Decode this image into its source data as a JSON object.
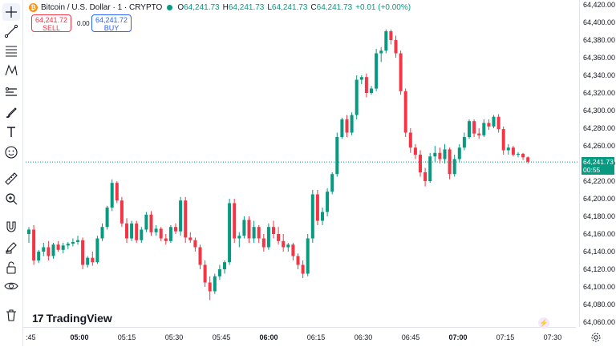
{
  "header": {
    "coin_glyph": "₿",
    "symbol": "Bitcoin / U.S. Dollar · 1 · CRYPTO",
    "ohlc": [
      {
        "k": "O",
        "v": "64,241.73"
      },
      {
        "k": "H",
        "v": "64,241.73"
      },
      {
        "k": "L",
        "v": "64,241.73"
      },
      {
        "k": "C",
        "v": "64,241.73"
      },
      {
        "k": "",
        "v": "+0.01 (+0.00%)"
      }
    ]
  },
  "trade": {
    "sell_price": "64,241.72",
    "sell_label": "SELL",
    "spread": "0.00",
    "buy_price": "64,241.72",
    "buy_label": "BUY"
  },
  "price_tag": {
    "price": "64,241.73",
    "countdown": "00:55"
  },
  "logo": {
    "mark": "17",
    "text": "TradingView"
  },
  "tools": [
    "crosshair-icon",
    "trend-line-icon",
    "fib-icon",
    "pattern-icon",
    "measure-lines-icon",
    "brush-icon",
    "text-icon",
    "emoji-icon",
    "ruler-icon",
    "zoom-icon",
    "magnet-icon",
    "lock-pencil-icon",
    "lock-icon",
    "eye-icon",
    "trash-icon"
  ],
  "colors": {
    "up": "#089981",
    "down": "#f23645",
    "accent": "#2962ff"
  },
  "chart_data": {
    "type": "candlestick",
    "interval": "1 minute",
    "ylim": [
      64050,
      64420
    ],
    "y_ticks": [
      64060,
      64080,
      64100,
      64120,
      64140,
      64160,
      64180,
      64200,
      64220,
      64240,
      64260,
      64280,
      64300,
      64320,
      64340,
      64360,
      64380,
      64400,
      64420
    ],
    "y_tick_labels": [
      "64,060.00",
      "64,080.00",
      "64,100.00",
      "64,120.00",
      "64,140.00",
      "64,160.00",
      "64,180.00",
      "64,200.00",
      "64,220.00",
      "64,240.00",
      "64,260.00",
      "64,280.00",
      "64,300.00",
      "64,320.00",
      "64,340.00",
      "64,360.00",
      "64,380.00",
      "64,400.00",
      "64,420.00"
    ],
    "x_ticks": [
      {
        "label": ":45",
        "bold": false,
        "minute": 0
      },
      {
        "label": "05:00",
        "bold": true,
        "minute": 15
      },
      {
        "label": "05:15",
        "bold": false,
        "minute": 30
      },
      {
        "label": "05:30",
        "bold": false,
        "minute": 45
      },
      {
        "label": "05:45",
        "bold": false,
        "minute": 60
      },
      {
        "label": "06:00",
        "bold": true,
        "minute": 75
      },
      {
        "label": "06:15",
        "bold": false,
        "minute": 90
      },
      {
        "label": "06:30",
        "bold": false,
        "minute": 105
      },
      {
        "label": "06:45",
        "bold": false,
        "minute": 120
      },
      {
        "label": "07:00",
        "bold": true,
        "minute": 135
      },
      {
        "label": "07:15",
        "bold": false,
        "minute": 150
      },
      {
        "label": "07:30",
        "bold": false,
        "minute": 165
      }
    ],
    "last_price": 64241.73,
    "candles": [
      {
        "o": 64160,
        "h": 64168,
        "l": 64150,
        "c": 64165
      },
      {
        "o": 64165,
        "h": 64170,
        "l": 64125,
        "c": 64130
      },
      {
        "o": 64130,
        "h": 64142,
        "l": 64127,
        "c": 64140
      },
      {
        "o": 64140,
        "h": 64150,
        "l": 64135,
        "c": 64145
      },
      {
        "o": 64145,
        "h": 64152,
        "l": 64130,
        "c": 64135
      },
      {
        "o": 64135,
        "h": 64150,
        "l": 64132,
        "c": 64148
      },
      {
        "o": 64148,
        "h": 64152,
        "l": 64140,
        "c": 64142
      },
      {
        "o": 64142,
        "h": 64150,
        "l": 64138,
        "c": 64147
      },
      {
        "o": 64147,
        "h": 64151,
        "l": 64143,
        "c": 64149
      },
      {
        "o": 64149,
        "h": 64155,
        "l": 64146,
        "c": 64151
      },
      {
        "o": 64151,
        "h": 64158,
        "l": 64148,
        "c": 64153
      },
      {
        "o": 64153,
        "h": 64156,
        "l": 64120,
        "c": 64125
      },
      {
        "o": 64125,
        "h": 64135,
        "l": 64122,
        "c": 64133
      },
      {
        "o": 64133,
        "h": 64140,
        "l": 64124,
        "c": 64128
      },
      {
        "o": 64128,
        "h": 64158,
        "l": 64126,
        "c": 64155
      },
      {
        "o": 64155,
        "h": 64172,
        "l": 64152,
        "c": 64168
      },
      {
        "o": 64168,
        "h": 64192,
        "l": 64165,
        "c": 64190
      },
      {
        "o": 64190,
        "h": 64222,
        "l": 64186,
        "c": 64218
      },
      {
        "o": 64218,
        "h": 64220,
        "l": 64195,
        "c": 64198
      },
      {
        "o": 64198,
        "h": 64202,
        "l": 64168,
        "c": 64172
      },
      {
        "o": 64172,
        "h": 64178,
        "l": 64150,
        "c": 64155
      },
      {
        "o": 64155,
        "h": 64175,
        "l": 64152,
        "c": 64172
      },
      {
        "o": 64172,
        "h": 64175,
        "l": 64150,
        "c": 64153
      },
      {
        "o": 64153,
        "h": 64168,
        "l": 64150,
        "c": 64165
      },
      {
        "o": 64165,
        "h": 64185,
        "l": 64162,
        "c": 64182
      },
      {
        "o": 64182,
        "h": 64186,
        "l": 64158,
        "c": 64162
      },
      {
        "o": 64162,
        "h": 64170,
        "l": 64158,
        "c": 64166
      },
      {
        "o": 64166,
        "h": 64168,
        "l": 64152,
        "c": 64155
      },
      {
        "o": 64155,
        "h": 64160,
        "l": 64148,
        "c": 64152
      },
      {
        "o": 64152,
        "h": 64170,
        "l": 64150,
        "c": 64168
      },
      {
        "o": 64168,
        "h": 64172,
        "l": 64160,
        "c": 64163
      },
      {
        "o": 64163,
        "h": 64202,
        "l": 64158,
        "c": 64198
      },
      {
        "o": 64198,
        "h": 64202,
        "l": 64150,
        "c": 64156
      },
      {
        "o": 64156,
        "h": 64162,
        "l": 64150,
        "c": 64153
      },
      {
        "o": 64153,
        "h": 64156,
        "l": 64140,
        "c": 64145
      },
      {
        "o": 64145,
        "h": 64148,
        "l": 64120,
        "c": 64125
      },
      {
        "o": 64125,
        "h": 64130,
        "l": 64100,
        "c": 64105
      },
      {
        "o": 64105,
        "h": 64112,
        "l": 64085,
        "c": 64095
      },
      {
        "o": 64095,
        "h": 64115,
        "l": 64092,
        "c": 64112
      },
      {
        "o": 64112,
        "h": 64125,
        "l": 64108,
        "c": 64120
      },
      {
        "o": 64120,
        "h": 64130,
        "l": 64115,
        "c": 64128
      },
      {
        "o": 64128,
        "h": 64200,
        "l": 64125,
        "c": 64195
      },
      {
        "o": 64195,
        "h": 64200,
        "l": 64150,
        "c": 64155
      },
      {
        "o": 64155,
        "h": 64162,
        "l": 64145,
        "c": 64158
      },
      {
        "o": 64158,
        "h": 64180,
        "l": 64155,
        "c": 64176
      },
      {
        "o": 64176,
        "h": 64180,
        "l": 64150,
        "c": 64155
      },
      {
        "o": 64155,
        "h": 64175,
        "l": 64150,
        "c": 64168
      },
      {
        "o": 64168,
        "h": 64170,
        "l": 64150,
        "c": 64155
      },
      {
        "o": 64155,
        "h": 64160,
        "l": 64140,
        "c": 64145
      },
      {
        "o": 64145,
        "h": 64172,
        "l": 64142,
        "c": 64168
      },
      {
        "o": 64168,
        "h": 64175,
        "l": 64155,
        "c": 64160
      },
      {
        "o": 64160,
        "h": 64168,
        "l": 64148,
        "c": 64152
      },
      {
        "o": 64152,
        "h": 64160,
        "l": 64140,
        "c": 64145
      },
      {
        "o": 64145,
        "h": 64150,
        "l": 64140,
        "c": 64148
      },
      {
        "o": 64148,
        "h": 64150,
        "l": 64130,
        "c": 64135
      },
      {
        "o": 64135,
        "h": 64138,
        "l": 64120,
        "c": 64125
      },
      {
        "o": 64125,
        "h": 64130,
        "l": 64110,
        "c": 64115
      },
      {
        "o": 64115,
        "h": 64160,
        "l": 64112,
        "c": 64155
      },
      {
        "o": 64155,
        "h": 64210,
        "l": 64150,
        "c": 64205
      },
      {
        "o": 64205,
        "h": 64210,
        "l": 64170,
        "c": 64175
      },
      {
        "o": 64175,
        "h": 64190,
        "l": 64170,
        "c": 64185
      },
      {
        "o": 64185,
        "h": 64212,
        "l": 64180,
        "c": 64208
      },
      {
        "o": 64208,
        "h": 64230,
        "l": 64205,
        "c": 64228
      },
      {
        "o": 64228,
        "h": 64275,
        "l": 64225,
        "c": 64270
      },
      {
        "o": 64270,
        "h": 64292,
        "l": 64268,
        "c": 64290
      },
      {
        "o": 64290,
        "h": 64295,
        "l": 64270,
        "c": 64275
      },
      {
        "o": 64275,
        "h": 64298,
        "l": 64272,
        "c": 64295
      },
      {
        "o": 64295,
        "h": 64340,
        "l": 64290,
        "c": 64335
      },
      {
        "o": 64335,
        "h": 64340,
        "l": 64330,
        "c": 64338
      },
      {
        "o": 64338,
        "h": 64342,
        "l": 64315,
        "c": 64320
      },
      {
        "o": 64320,
        "h": 64328,
        "l": 64318,
        "c": 64325
      },
      {
        "o": 64325,
        "h": 64370,
        "l": 64322,
        "c": 64365
      },
      {
        "o": 64365,
        "h": 64372,
        "l": 64355,
        "c": 64368
      },
      {
        "o": 64368,
        "h": 64392,
        "l": 64365,
        "c": 64390
      },
      {
        "o": 64390,
        "h": 64392,
        "l": 64375,
        "c": 64380
      },
      {
        "o": 64380,
        "h": 64385,
        "l": 64360,
        "c": 64365
      },
      {
        "o": 64365,
        "h": 64368,
        "l": 64318,
        "c": 64322
      },
      {
        "o": 64322,
        "h": 64325,
        "l": 64270,
        "c": 64275
      },
      {
        "o": 64275,
        "h": 64280,
        "l": 64252,
        "c": 64258
      },
      {
        "o": 64258,
        "h": 64262,
        "l": 64245,
        "c": 64250
      },
      {
        "o": 64250,
        "h": 64255,
        "l": 64225,
        "c": 64230
      },
      {
        "o": 64230,
        "h": 64235,
        "l": 64214,
        "c": 64220
      },
      {
        "o": 64220,
        "h": 64252,
        "l": 64218,
        "c": 64248
      },
      {
        "o": 64248,
        "h": 64260,
        "l": 64242,
        "c": 64252
      },
      {
        "o": 64252,
        "h": 64258,
        "l": 64240,
        "c": 64245
      },
      {
        "o": 64245,
        "h": 64262,
        "l": 64240,
        "c": 64256
      },
      {
        "o": 64256,
        "h": 64258,
        "l": 64222,
        "c": 64228
      },
      {
        "o": 64228,
        "h": 64250,
        "l": 64225,
        "c": 64245
      },
      {
        "o": 64245,
        "h": 64262,
        "l": 64242,
        "c": 64258
      },
      {
        "o": 64258,
        "h": 64275,
        "l": 64255,
        "c": 64270
      },
      {
        "o": 64270,
        "h": 64290,
        "l": 64268,
        "c": 64288
      },
      {
        "o": 64288,
        "h": 64290,
        "l": 64270,
        "c": 64274
      },
      {
        "o": 64274,
        "h": 64280,
        "l": 64268,
        "c": 64272
      },
      {
        "o": 64272,
        "h": 64290,
        "l": 64270,
        "c": 64286
      },
      {
        "o": 64286,
        "h": 64290,
        "l": 64278,
        "c": 64282
      },
      {
        "o": 64282,
        "h": 64295,
        "l": 64280,
        "c": 64293
      },
      {
        "o": 64293,
        "h": 64296,
        "l": 64275,
        "c": 64279
      },
      {
        "o": 64279,
        "h": 64282,
        "l": 64250,
        "c": 64255
      },
      {
        "o": 64255,
        "h": 64262,
        "l": 64250,
        "c": 64258
      },
      {
        "o": 64258,
        "h": 64260,
        "l": 64248,
        "c": 64250
      },
      {
        "o": 64250,
        "h": 64253,
        "l": 64247,
        "c": 64251
      },
      {
        "o": 64251,
        "h": 64252,
        "l": 64244,
        "c": 64247
      },
      {
        "o": 64247,
        "h": 64248,
        "l": 64240,
        "c": 64242
      }
    ]
  }
}
